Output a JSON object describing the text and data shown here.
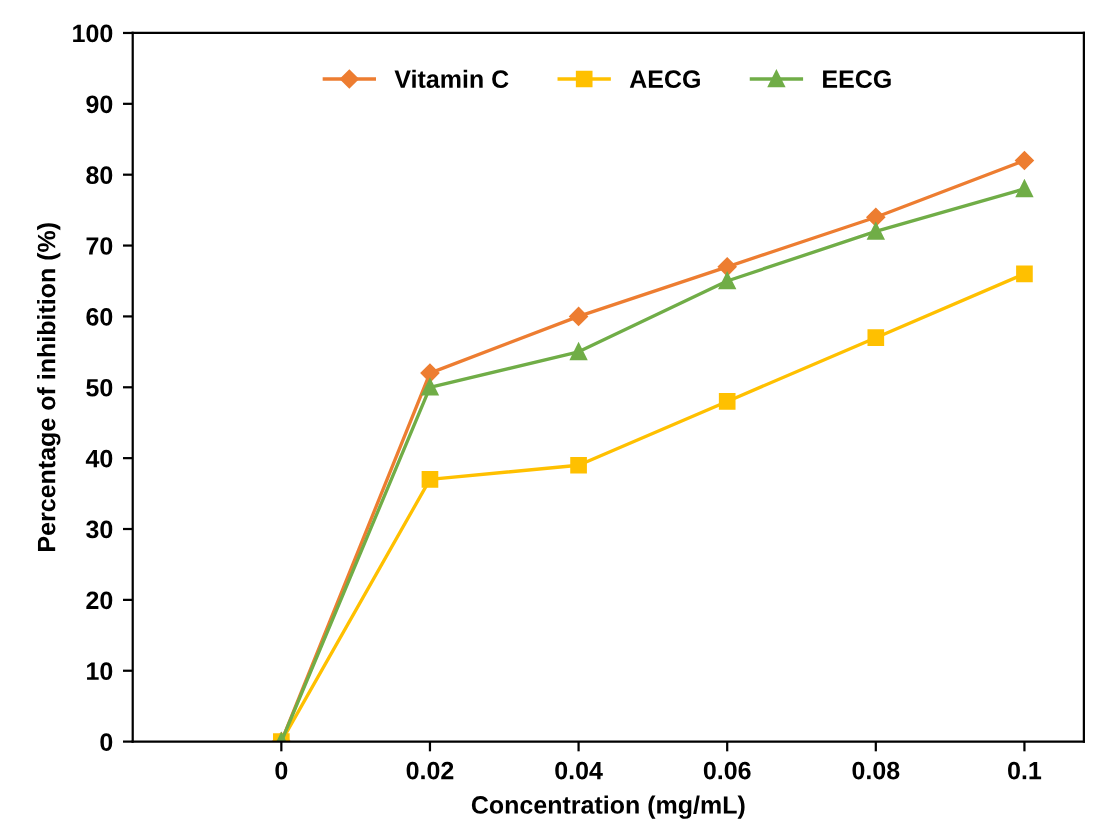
{
  "chart_data": {
    "type": "line",
    "xlabel": "Concentration (mg/mL)",
    "ylabel": "Percentage of inhibition (%)",
    "categories": [
      "0",
      "0.02",
      "0.04",
      "0.06",
      "0.08",
      "0.1"
    ],
    "series": [
      {
        "name": "Vitamin C",
        "color": "#ed7d31",
        "marker": "diamond",
        "values": [
          0,
          52,
          60,
          67,
          74,
          82
        ]
      },
      {
        "name": "AECG",
        "color": "#ffc000",
        "marker": "square",
        "values": [
          0,
          37,
          39,
          48,
          57,
          66
        ]
      },
      {
        "name": "EECG",
        "color": "#70ad47",
        "marker": "triangle",
        "values": [
          0,
          50,
          55,
          65,
          72,
          78
        ]
      }
    ],
    "ylim": [
      0,
      100
    ],
    "yticks": [
      0,
      10,
      20,
      30,
      40,
      50,
      60,
      70,
      80,
      90,
      100
    ],
    "grid": false,
    "legend": "top",
    "line_style": "solid"
  }
}
